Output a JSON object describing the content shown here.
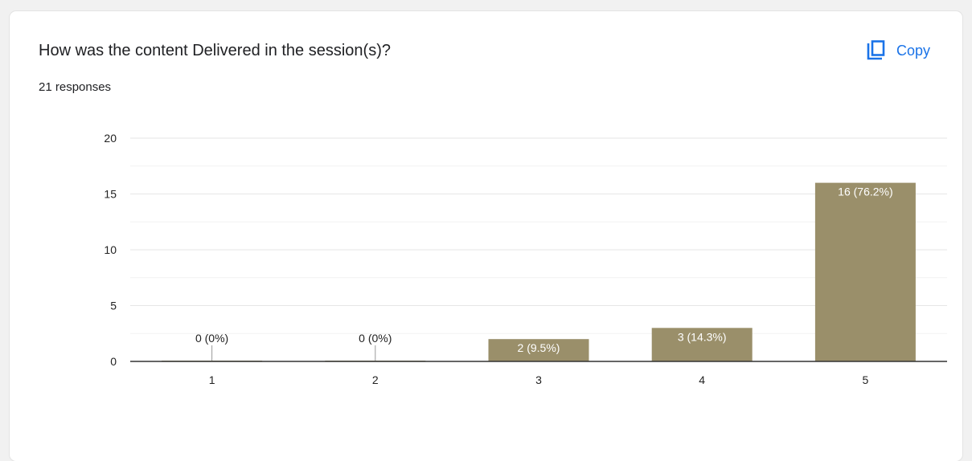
{
  "header": {
    "question": "How was the content Delivered in the session(s)?",
    "responses": "21 responses",
    "copy_label": "Copy"
  },
  "colors": {
    "bar": "#9a8f6a",
    "accent": "#1a73e8",
    "grid_major": "#e6e6e6",
    "grid_minor": "#f2f2f2",
    "axis": "#333333"
  },
  "icons": {
    "copy": "copy-icon"
  },
  "chart_data": {
    "type": "bar",
    "categories": [
      "1",
      "2",
      "3",
      "4",
      "5"
    ],
    "values": [
      0,
      0,
      2,
      3,
      16
    ],
    "data_labels": [
      "0 (0%)",
      "0 (0%)",
      "2 (9.5%)",
      "3 (14.3%)",
      "16 (76.2%)"
    ],
    "y_ticks": [
      0,
      5,
      10,
      15,
      20
    ],
    "ylim": [
      0,
      20
    ],
    "grid": true,
    "legend": "none"
  }
}
